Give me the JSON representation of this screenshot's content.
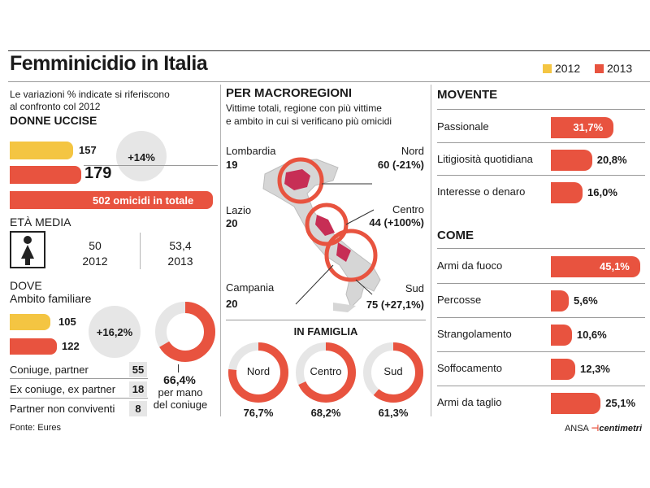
{
  "header": {
    "title": "Femminicidio in Italia",
    "legend": [
      "2012",
      "2013"
    ]
  },
  "colors": {
    "y2012": "#f4c542",
    "y2013": "#e8533f",
    "circle_bg": "#e6e6e6"
  },
  "left": {
    "note": [
      "Le variazioni % indicate si riferiscono",
      "al confronto col 2012"
    ],
    "donne_uccise": {
      "title": "DONNE UCCISE",
      "v2012": "157",
      "v2013": "179",
      "change": "+14%",
      "total": "502 omicidi in totale"
    },
    "eta_media": {
      "title": "ETÀ MEDIA",
      "icon": "woman-icon",
      "v2012": "50",
      "y2012": "2012",
      "v2013": "53,4",
      "y2013": "2013"
    },
    "dove": {
      "title": "DOVE",
      "subtitle": "Ambito familiare",
      "v2012": "105",
      "v2013": "122",
      "change": "+16,2%",
      "rows": [
        {
          "label": "Coniuge, partner",
          "value": "55"
        },
        {
          "label": "Ex coniuge, ex partner",
          "value": "18"
        },
        {
          "label": "Partner non conviventi",
          "value": "8"
        }
      ],
      "donut": {
        "value": 66.4,
        "label": "66,4%",
        "caption": [
          "per mano",
          "del coniuge"
        ]
      }
    },
    "source": "Fonte: Eures"
  },
  "middle": {
    "title": "PER MACROREGIONI",
    "subtitle": [
      "Vittime totali, regione con più vittime",
      "e ambito in cui si verificano più omicidi"
    ],
    "regions": [
      {
        "region": "Lombardia",
        "region_value": "19",
        "macro": "Nord",
        "macro_value": "60 (-21%)"
      },
      {
        "region": "Lazio",
        "region_value": "20",
        "macro": "Centro",
        "macro_value": "44 (+100%)"
      },
      {
        "region": "Campania",
        "region_value": "20",
        "macro": "Sud",
        "macro_value": "75 (+27,1%)"
      }
    ],
    "famiglia": {
      "title": "IN FAMIGLIA",
      "items": [
        {
          "label": "Nord",
          "value": 76.7,
          "text": "76,7%"
        },
        {
          "label": "Centro",
          "value": 68.2,
          "text": "68,2%"
        },
        {
          "label": "Sud",
          "value": 61.3,
          "text": "61,3%"
        }
      ]
    }
  },
  "right": {
    "movente": {
      "title": "MOVENTE",
      "items": [
        {
          "label": "Passionale",
          "value": 31.7,
          "text": "31,7%"
        },
        {
          "label": "Litigiosità quotidiana",
          "value": 20.8,
          "text": "20,8%"
        },
        {
          "label": "Interesse o denaro",
          "value": 16.0,
          "text": "16,0%"
        }
      ]
    },
    "come": {
      "title": "COME",
      "items": [
        {
          "label": "Armi da fuoco",
          "value": 45.1,
          "text": "45,1%"
        },
        {
          "label": "Percosse",
          "value": 5.6,
          "text": "5,6%"
        },
        {
          "label": "Strangolamento",
          "value": 10.6,
          "text": "10,6%"
        },
        {
          "label": "Soffocamento",
          "value": 12.3,
          "text": "12,3%"
        },
        {
          "label": "Armi da taglio",
          "value": 25.1,
          "text": "25,1%"
        }
      ]
    },
    "credit": {
      "brand": "ANSA",
      "partner": "centimetri"
    }
  }
}
